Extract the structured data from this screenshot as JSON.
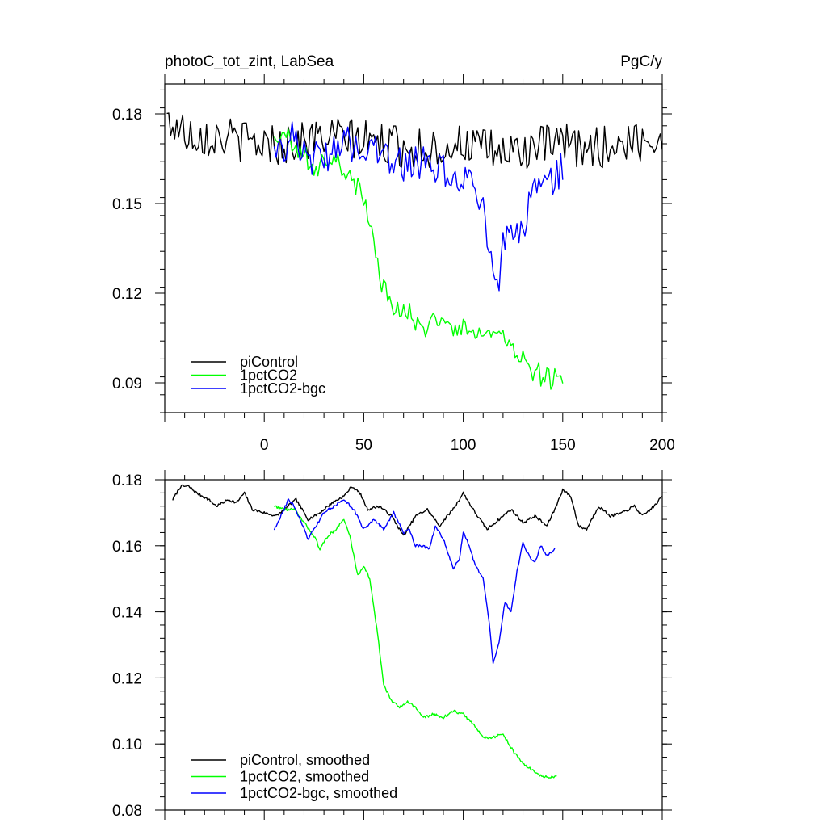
{
  "chart_data": [
    {
      "type": "line",
      "title": "photoC_tot_zint, LabSea",
      "units": "PgC/y",
      "xlim": [
        -50,
        200
      ],
      "ylim": [
        0.08,
        0.19
      ],
      "xticks": [
        0,
        50,
        100,
        150,
        200
      ],
      "yticks": [
        0.09,
        0.12,
        0.15,
        0.18
      ],
      "ytick_labels": [
        "0.09",
        "0.12",
        "0.15",
        "0.18"
      ],
      "legend_position": "bottom-left",
      "series": [
        {
          "name": "piControl",
          "color": "#000000",
          "x_start": -49,
          "x_step": 1,
          "anchors": [
            [
              -49,
              0.178
            ],
            [
              -40,
              0.174
            ],
            [
              -30,
              0.173
            ],
            [
              -20,
              0.172
            ],
            [
              -10,
              0.171
            ],
            [
              0,
              0.17
            ],
            [
              10,
              0.17
            ],
            [
              20,
              0.171
            ],
            [
              30,
              0.172
            ],
            [
              40,
              0.172
            ],
            [
              50,
              0.171
            ],
            [
              60,
              0.17
            ],
            [
              70,
              0.169
            ],
            [
              80,
              0.168
            ],
            [
              90,
              0.169
            ],
            [
              100,
              0.17
            ],
            [
              110,
              0.168
            ],
            [
              120,
              0.167
            ],
            [
              130,
              0.168
            ],
            [
              140,
              0.169
            ],
            [
              150,
              0.17
            ],
            [
              160,
              0.168
            ],
            [
              170,
              0.169
            ],
            [
              180,
              0.17
            ],
            [
              190,
              0.171
            ],
            [
              200,
              0.172
            ]
          ],
          "noise": 0.007
        },
        {
          "name": "1pctCO2",
          "color": "#00ff00",
          "x_start": 5,
          "x_step": 1,
          "anchors": [
            [
              5,
              0.171
            ],
            [
              15,
              0.171
            ],
            [
              20,
              0.166
            ],
            [
              25,
              0.162
            ],
            [
              30,
              0.165
            ],
            [
              35,
              0.165
            ],
            [
              40,
              0.162
            ],
            [
              45,
              0.157
            ],
            [
              50,
              0.152
            ],
            [
              55,
              0.137
            ],
            [
              60,
              0.121
            ],
            [
              65,
              0.116
            ],
            [
              70,
              0.115
            ],
            [
              80,
              0.109
            ],
            [
              90,
              0.11
            ],
            [
              100,
              0.108
            ],
            [
              110,
              0.105
            ],
            [
              120,
              0.104
            ],
            [
              130,
              0.097
            ],
            [
              140,
              0.092
            ],
            [
              150,
              0.091
            ]
          ],
          "noise": 0.004
        },
        {
          "name": "1pctCO2-bgc",
          "color": "#0000ff",
          "x_start": 5,
          "x_step": 1,
          "anchors": [
            [
              5,
              0.167
            ],
            [
              10,
              0.17
            ],
            [
              15,
              0.174
            ],
            [
              20,
              0.165
            ],
            [
              30,
              0.166
            ],
            [
              40,
              0.17
            ],
            [
              50,
              0.17
            ],
            [
              60,
              0.166
            ],
            [
              70,
              0.163
            ],
            [
              80,
              0.163
            ],
            [
              85,
              0.16
            ],
            [
              90,
              0.162
            ],
            [
              95,
              0.155
            ],
            [
              100,
              0.158
            ],
            [
              105,
              0.158
            ],
            [
              110,
              0.15
            ],
            [
              113,
              0.13
            ],
            [
              117,
              0.122
            ],
            [
              120,
              0.135
            ],
            [
              125,
              0.142
            ],
            [
              130,
              0.14
            ],
            [
              135,
              0.155
            ],
            [
              140,
              0.16
            ],
            [
              145,
              0.157
            ],
            [
              150,
              0.162
            ]
          ],
          "noise": 0.006
        }
      ]
    },
    {
      "type": "line",
      "title": "",
      "xlim": [
        -50,
        200
      ],
      "ylim": [
        0.08,
        0.18
      ],
      "xticks": [
        0,
        50,
        100,
        150,
        200
      ],
      "yticks": [
        0.08,
        0.1,
        0.12,
        0.14,
        0.16,
        0.18
      ],
      "ytick_labels": [
        "0.08",
        "0.10",
        "0.12",
        "0.14",
        "0.16",
        "0.18"
      ],
      "legend_position": "bottom-left",
      "series": [
        {
          "name": "piControl, smoothed",
          "color": "#000000",
          "x_start": -46,
          "x_step": 1,
          "anchors": [
            [
              -46,
              0.174
            ],
            [
              -42,
              0.178
            ],
            [
              -38,
              0.178
            ],
            [
              -34,
              0.176
            ],
            [
              -28,
              0.174
            ],
            [
              -24,
              0.172
            ],
            [
              -18,
              0.174
            ],
            [
              -14,
              0.173
            ],
            [
              -10,
              0.176
            ],
            [
              -6,
              0.171
            ],
            [
              0,
              0.17
            ],
            [
              6,
              0.169
            ],
            [
              12,
              0.172
            ],
            [
              16,
              0.174
            ],
            [
              22,
              0.168
            ],
            [
              28,
              0.17
            ],
            [
              34,
              0.173
            ],
            [
              40,
              0.175
            ],
            [
              44,
              0.178
            ],
            [
              48,
              0.176
            ],
            [
              52,
              0.171
            ],
            [
              58,
              0.172
            ],
            [
              64,
              0.169
            ],
            [
              70,
              0.163
            ],
            [
              76,
              0.169
            ],
            [
              82,
              0.171
            ],
            [
              88,
              0.166
            ],
            [
              92,
              0.169
            ],
            [
              96,
              0.172
            ],
            [
              100,
              0.176
            ],
            [
              106,
              0.17
            ],
            [
              112,
              0.165
            ],
            [
              118,
              0.168
            ],
            [
              124,
              0.171
            ],
            [
              130,
              0.167
            ],
            [
              136,
              0.169
            ],
            [
              142,
              0.166
            ],
            [
              146,
              0.171
            ],
            [
              150,
              0.177
            ],
            [
              154,
              0.175
            ],
            [
              158,
              0.166
            ],
            [
              162,
              0.165
            ],
            [
              168,
              0.172
            ],
            [
              174,
              0.169
            ],
            [
              180,
              0.17
            ],
            [
              186,
              0.172
            ],
            [
              190,
              0.169
            ],
            [
              196,
              0.172
            ],
            [
              200,
              0.175
            ]
          ]
        },
        {
          "name": "1pctCO2, smoothed",
          "color": "#00ff00",
          "x_start": 5,
          "x_step": 1,
          "anchors": [
            [
              5,
              0.172
            ],
            [
              10,
              0.171
            ],
            [
              15,
              0.171
            ],
            [
              20,
              0.167
            ],
            [
              25,
              0.163
            ],
            [
              28,
              0.159
            ],
            [
              32,
              0.163
            ],
            [
              36,
              0.165
            ],
            [
              40,
              0.168
            ],
            [
              43,
              0.163
            ],
            [
              47,
              0.151
            ],
            [
              50,
              0.154
            ],
            [
              53,
              0.15
            ],
            [
              57,
              0.133
            ],
            [
              60,
              0.118
            ],
            [
              64,
              0.113
            ],
            [
              68,
              0.111
            ],
            [
              72,
              0.113
            ],
            [
              76,
              0.111
            ],
            [
              80,
              0.108
            ],
            [
              85,
              0.109
            ],
            [
              90,
              0.108
            ],
            [
              95,
              0.11
            ],
            [
              100,
              0.109
            ],
            [
              105,
              0.106
            ],
            [
              110,
              0.102
            ],
            [
              115,
              0.102
            ],
            [
              120,
              0.103
            ],
            [
              125,
              0.098
            ],
            [
              130,
              0.094
            ],
            [
              135,
              0.092
            ],
            [
              140,
              0.09
            ],
            [
              147,
              0.09
            ]
          ]
        },
        {
          "name": "1pctCO2-bgc, smoothed",
          "color": "#0000ff",
          "x_start": 5,
          "x_step": 1,
          "anchors": [
            [
              5,
              0.165
            ],
            [
              10,
              0.171
            ],
            [
              12,
              0.174
            ],
            [
              15,
              0.172
            ],
            [
              18,
              0.168
            ],
            [
              22,
              0.162
            ],
            [
              26,
              0.166
            ],
            [
              30,
              0.17
            ],
            [
              35,
              0.172
            ],
            [
              40,
              0.174
            ],
            [
              45,
              0.171
            ],
            [
              50,
              0.165
            ],
            [
              55,
              0.168
            ],
            [
              60,
              0.165
            ],
            [
              65,
              0.17
            ],
            [
              70,
              0.164
            ],
            [
              73,
              0.165
            ],
            [
              76,
              0.16
            ],
            [
              80,
              0.16
            ],
            [
              83,
              0.159
            ],
            [
              86,
              0.166
            ],
            [
              90,
              0.162
            ],
            [
              95,
              0.153
            ],
            [
              98,
              0.156
            ],
            [
              100,
              0.164
            ],
            [
              103,
              0.16
            ],
            [
              106,
              0.154
            ],
            [
              110,
              0.15
            ],
            [
              113,
              0.137
            ],
            [
              115,
              0.124
            ],
            [
              118,
              0.131
            ],
            [
              121,
              0.143
            ],
            [
              124,
              0.14
            ],
            [
              127,
              0.152
            ],
            [
              130,
              0.161
            ],
            [
              133,
              0.157
            ],
            [
              136,
              0.155
            ],
            [
              139,
              0.16
            ],
            [
              142,
              0.157
            ],
            [
              146,
              0.159
            ]
          ]
        }
      ]
    }
  ]
}
